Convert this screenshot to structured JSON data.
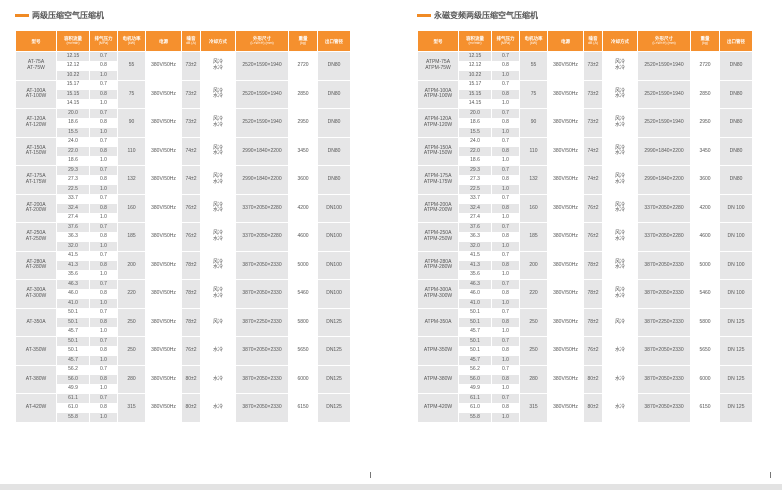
{
  "colors": {
    "accent": "#f5902e",
    "cell_gray": "#e6e6e7"
  },
  "headers": [
    {
      "label": "型号",
      "unit": ""
    },
    {
      "label": "容积流量",
      "unit": "(m³/min)"
    },
    {
      "label": "排气压力",
      "unit": "(MPa)"
    },
    {
      "label": "电机功率",
      "unit": "(kW)"
    },
    {
      "label": "电源",
      "unit": ""
    },
    {
      "label": "噪音",
      "unit": "dB (A)"
    },
    {
      "label": "冷却方式",
      "unit": ""
    },
    {
      "label": "外形尺寸",
      "unit": "(L×W×H) (mm)"
    },
    {
      "label": "重量",
      "unit": "(kg)"
    },
    {
      "label": "出口管径",
      "unit": ""
    }
  ],
  "pressures": [
    "0.7",
    "0.8",
    "1.0"
  ],
  "left": {
    "title": "两级压缩空气压缩机",
    "rows": [
      {
        "model": [
          "AT-75A",
          "AT-75W"
        ],
        "flow": [
          "12.15",
          "12.12",
          "10.22"
        ],
        "power": "55",
        "supply": "380V/50Hz",
        "noise": "73±2",
        "cooling": [
          "风冷",
          "水冷"
        ],
        "dims": "2520×1590×1940",
        "weight": "2720",
        "outlet": "DN80"
      },
      {
        "model": [
          "AT-100A",
          "AT-100W"
        ],
        "flow": [
          "15.17",
          "15.15",
          "14.15"
        ],
        "power": "75",
        "supply": "380V/50Hz",
        "noise": "73±2",
        "cooling": [
          "风冷",
          "水冷"
        ],
        "dims": "2520×1590×1940",
        "weight": "2850",
        "outlet": "DN80"
      },
      {
        "model": [
          "AT-120A",
          "AT-120W"
        ],
        "flow": [
          "20.0",
          "18.6",
          "15.5"
        ],
        "power": "90",
        "supply": "380V/50Hz",
        "noise": "73±2",
        "cooling": [
          "风冷",
          "水冷"
        ],
        "dims": "2520×1590×1940",
        "weight": "2950",
        "outlet": "DN80"
      },
      {
        "model": [
          "AT-150A",
          "AT-150W"
        ],
        "flow": [
          "24.0",
          "22.0",
          "18.6"
        ],
        "power": "110",
        "supply": "380V/50Hz",
        "noise": "74±2",
        "cooling": [
          "风冷",
          "水冷"
        ],
        "dims": "2990×1840×2200",
        "weight": "3450",
        "outlet": "DN80"
      },
      {
        "model": [
          "AT-175A",
          "AT-175W"
        ],
        "flow": [
          "29.3",
          "27.3",
          "22.5"
        ],
        "power": "132",
        "supply": "380V/50Hz",
        "noise": "74±2",
        "cooling": [
          "风冷",
          "水冷"
        ],
        "dims": "2990×1840×2200",
        "weight": "3600",
        "outlet": "DN80"
      },
      {
        "model": [
          "AT-200A",
          "AT-200W"
        ],
        "flow": [
          "33.7",
          "32.4",
          "27.4"
        ],
        "power": "160",
        "supply": "380V/50Hz",
        "noise": "76±2",
        "cooling": [
          "风冷",
          "水冷"
        ],
        "dims": "3370×2050×2280",
        "weight": "4200",
        "outlet": "DN100"
      },
      {
        "model": [
          "AT-250A",
          "AT-250W"
        ],
        "flow": [
          "37.6",
          "36.3",
          "32.0"
        ],
        "power": "185",
        "supply": "380V/50Hz",
        "noise": "76±2",
        "cooling": [
          "风冷",
          "水冷"
        ],
        "dims": "3370×2050×2280",
        "weight": "4600",
        "outlet": "DN100"
      },
      {
        "model": [
          "AT-280A",
          "AT-280W"
        ],
        "flow": [
          "41.5",
          "41.3",
          "35.6"
        ],
        "power": "200",
        "supply": "380V/50Hz",
        "noise": "78±2",
        "cooling": [
          "风冷",
          "水冷"
        ],
        "dims": "3870×2050×2330",
        "weight": "5000",
        "outlet": "DN100"
      },
      {
        "model": [
          "AT-300A",
          "AT-300W"
        ],
        "flow": [
          "46.3",
          "46.0",
          "41.0"
        ],
        "power": "220",
        "supply": "380V/50Hz",
        "noise": "78±2",
        "cooling": [
          "风冷",
          "水冷"
        ],
        "dims": "3870×2050×2330",
        "weight": "5460",
        "outlet": "DN100"
      },
      {
        "model": [
          "AT-350A"
        ],
        "flow": [
          "50.1",
          "50.1",
          "45.7"
        ],
        "power": "250",
        "supply": "380V/50Hz",
        "noise": "78±2",
        "cooling": [
          "风冷"
        ],
        "dims": "3870×2250×2330",
        "weight": "5800",
        "outlet": "DN125"
      },
      {
        "model": [
          "AT-350W"
        ],
        "flow": [
          "50.1",
          "50.1",
          "45.7"
        ],
        "power": "250",
        "supply": "380V/50Hz",
        "noise": "76±2",
        "cooling": [
          "水冷"
        ],
        "dims": "3870×2050×2330",
        "weight": "5650",
        "outlet": "DN125"
      },
      {
        "model": [
          "AT-380W"
        ],
        "flow": [
          "56.2",
          "56.0",
          "49.9"
        ],
        "power": "280",
        "supply": "380V/50Hz",
        "noise": "80±2",
        "cooling": [
          "水冷"
        ],
        "dims": "3870×2050×2330",
        "weight": "6000",
        "outlet": "DN125"
      },
      {
        "model": [
          "AT-420W"
        ],
        "flow": [
          "61.1",
          "61.0",
          "55.8"
        ],
        "power": "315",
        "supply": "380V/50Hz",
        "noise": "80±2",
        "cooling": [
          "水冷"
        ],
        "dims": "3870×2050×2330",
        "weight": "6150",
        "outlet": "DN125"
      }
    ]
  },
  "right": {
    "title": "永磁变频两级压缩空气压缩机",
    "rows": [
      {
        "model": [
          "ATPM-75A",
          "ATPM-75W"
        ],
        "flow": [
          "12.15",
          "12.12",
          "10.22"
        ],
        "power": "55",
        "supply": "380V/50Hz",
        "noise": "73±2",
        "cooling": [
          "风冷",
          "水冷"
        ],
        "dims": "2520×1590×1940",
        "weight": "2720",
        "outlet": "DN80"
      },
      {
        "model": [
          "ATPM-100A",
          "ATPM-100W"
        ],
        "flow": [
          "15.17",
          "15.15",
          "14.15"
        ],
        "power": "75",
        "supply": "380V/50Hz",
        "noise": "73±2",
        "cooling": [
          "风冷",
          "水冷"
        ],
        "dims": "2520×1590×1940",
        "weight": "2850",
        "outlet": "DN80"
      },
      {
        "model": [
          "ATPM-120A",
          "ATPM-120W"
        ],
        "flow": [
          "20.0",
          "18.6",
          "15.5"
        ],
        "power": "90",
        "supply": "380V/50Hz",
        "noise": "73±2",
        "cooling": [
          "风冷",
          "水冷"
        ],
        "dims": "2520×1590×1940",
        "weight": "2950",
        "outlet": "DN80"
      },
      {
        "model": [
          "ATPM-150A",
          "ATPM-150W"
        ],
        "flow": [
          "24.0",
          "22.0",
          "18.6"
        ],
        "power": "110",
        "supply": "380V/50Hz",
        "noise": "74±2",
        "cooling": [
          "风冷",
          "水冷"
        ],
        "dims": "2990×1840×2200",
        "weight": "3450",
        "outlet": "DN80"
      },
      {
        "model": [
          "ATPM-175A",
          "ATPM-175W"
        ],
        "flow": [
          "29.3",
          "27.3",
          "22.5"
        ],
        "power": "132",
        "supply": "380V/50Hz",
        "noise": "74±2",
        "cooling": [
          "风冷",
          "水冷"
        ],
        "dims": "2990×1840×2200",
        "weight": "3600",
        "outlet": "DN80"
      },
      {
        "model": [
          "ATPM-200A",
          "ATPM-200W"
        ],
        "flow": [
          "33.7",
          "32.4",
          "27.4"
        ],
        "power": "160",
        "supply": "380V/50Hz",
        "noise": "76±2",
        "cooling": [
          "风冷",
          "水冷"
        ],
        "dims": "3370×2050×2280",
        "weight": "4200",
        "outlet": "DN 100"
      },
      {
        "model": [
          "ATPM-250A",
          "ATPM-250W"
        ],
        "flow": [
          "37.6",
          "36.3",
          "32.0"
        ],
        "power": "185",
        "supply": "380V/50Hz",
        "noise": "76±2",
        "cooling": [
          "风冷",
          "水冷"
        ],
        "dims": "3370×2050×2280",
        "weight": "4600",
        "outlet": "DN 100"
      },
      {
        "model": [
          "ATPM-280A",
          "ATPM-280W"
        ],
        "flow": [
          "41.5",
          "41.3",
          "35.6"
        ],
        "power": "200",
        "supply": "380V/50Hz",
        "noise": "78±2",
        "cooling": [
          "风冷",
          "水冷"
        ],
        "dims": "3870×2050×2330",
        "weight": "5000",
        "outlet": "DN 100"
      },
      {
        "model": [
          "ATPM-300A",
          "ATPM-300W"
        ],
        "flow": [
          "46.3",
          "46.0",
          "41.0"
        ],
        "power": "220",
        "supply": "380V/50Hz",
        "noise": "78±2",
        "cooling": [
          "风冷",
          "水冷"
        ],
        "dims": "3870×2050×2330",
        "weight": "5460",
        "outlet": "DN 100"
      },
      {
        "model": [
          "ATPM-350A"
        ],
        "flow": [
          "50.1",
          "50.1",
          "45.7"
        ],
        "power": "250",
        "supply": "380V/50Hz",
        "noise": "78±2",
        "cooling": [
          "风冷"
        ],
        "dims": "3870×2250×2330",
        "weight": "5800",
        "outlet": "DN 125"
      },
      {
        "model": [
          "ATPM-350W"
        ],
        "flow": [
          "50.1",
          "50.1",
          "45.7"
        ],
        "power": "250",
        "supply": "380V/50Hz",
        "noise": "76±2",
        "cooling": [
          "水冷"
        ],
        "dims": "3870×2050×2330",
        "weight": "5650",
        "outlet": "DN 125"
      },
      {
        "model": [
          "ATPM-380W"
        ],
        "flow": [
          "56.2",
          "56.0",
          "49.9"
        ],
        "power": "280",
        "supply": "380V/50Hz",
        "noise": "80±2",
        "cooling": [
          "水冷"
        ],
        "dims": "3870×2050×2330",
        "weight": "6000",
        "outlet": "DN 125"
      },
      {
        "model": [
          "ATPM-420W"
        ],
        "flow": [
          "61.1",
          "61.0",
          "55.8"
        ],
        "power": "315",
        "supply": "380V/50Hz",
        "noise": "80±2",
        "cooling": [
          "水冷"
        ],
        "dims": "3870×2050×2330",
        "weight": "6150",
        "outlet": "DN 125"
      }
    ]
  }
}
